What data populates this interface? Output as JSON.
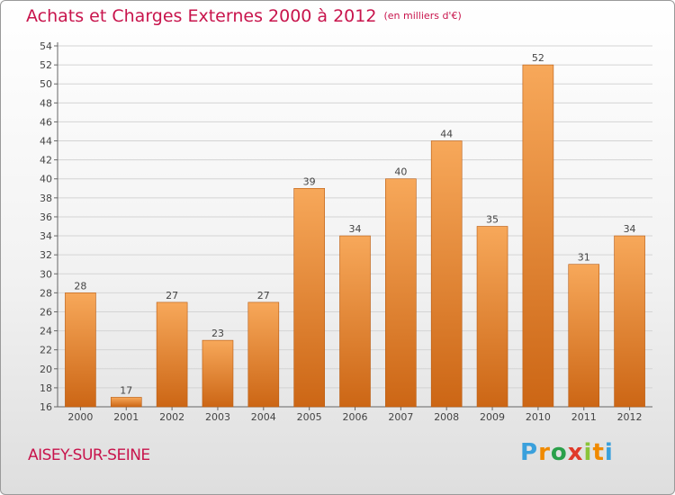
{
  "chart_data": {
    "type": "bar",
    "title": "Achats et Charges Externes 2000 à 2012",
    "subtitle": "(en milliers d'€)",
    "categories": [
      "2000",
      "2001",
      "2002",
      "2003",
      "2004",
      "2005",
      "2006",
      "2007",
      "2008",
      "2009",
      "2010",
      "2011",
      "2012"
    ],
    "values": [
      28,
      17,
      27,
      23,
      27,
      39,
      34,
      40,
      44,
      35,
      52,
      31,
      34
    ],
    "ylim": [
      16,
      54
    ],
    "yticks": [
      16,
      18,
      20,
      22,
      24,
      26,
      28,
      30,
      32,
      34,
      36,
      38,
      40,
      42,
      44,
      46,
      48,
      50,
      52,
      54
    ],
    "grid": true,
    "bar_color_top": "#f7a85a",
    "bar_color_bottom": "#cc6615",
    "title_color": "#c8144c"
  },
  "location": "AISEY-SUR-SEINE",
  "logo": {
    "letters": [
      "P",
      "r",
      "o",
      "x",
      "i",
      "t",
      "i"
    ],
    "colors": [
      "#3aa0dc",
      "#f08a00",
      "#2aa04a",
      "#e03a2a",
      "#8ac43a",
      "#f08a00",
      "#3aa0dc"
    ]
  }
}
